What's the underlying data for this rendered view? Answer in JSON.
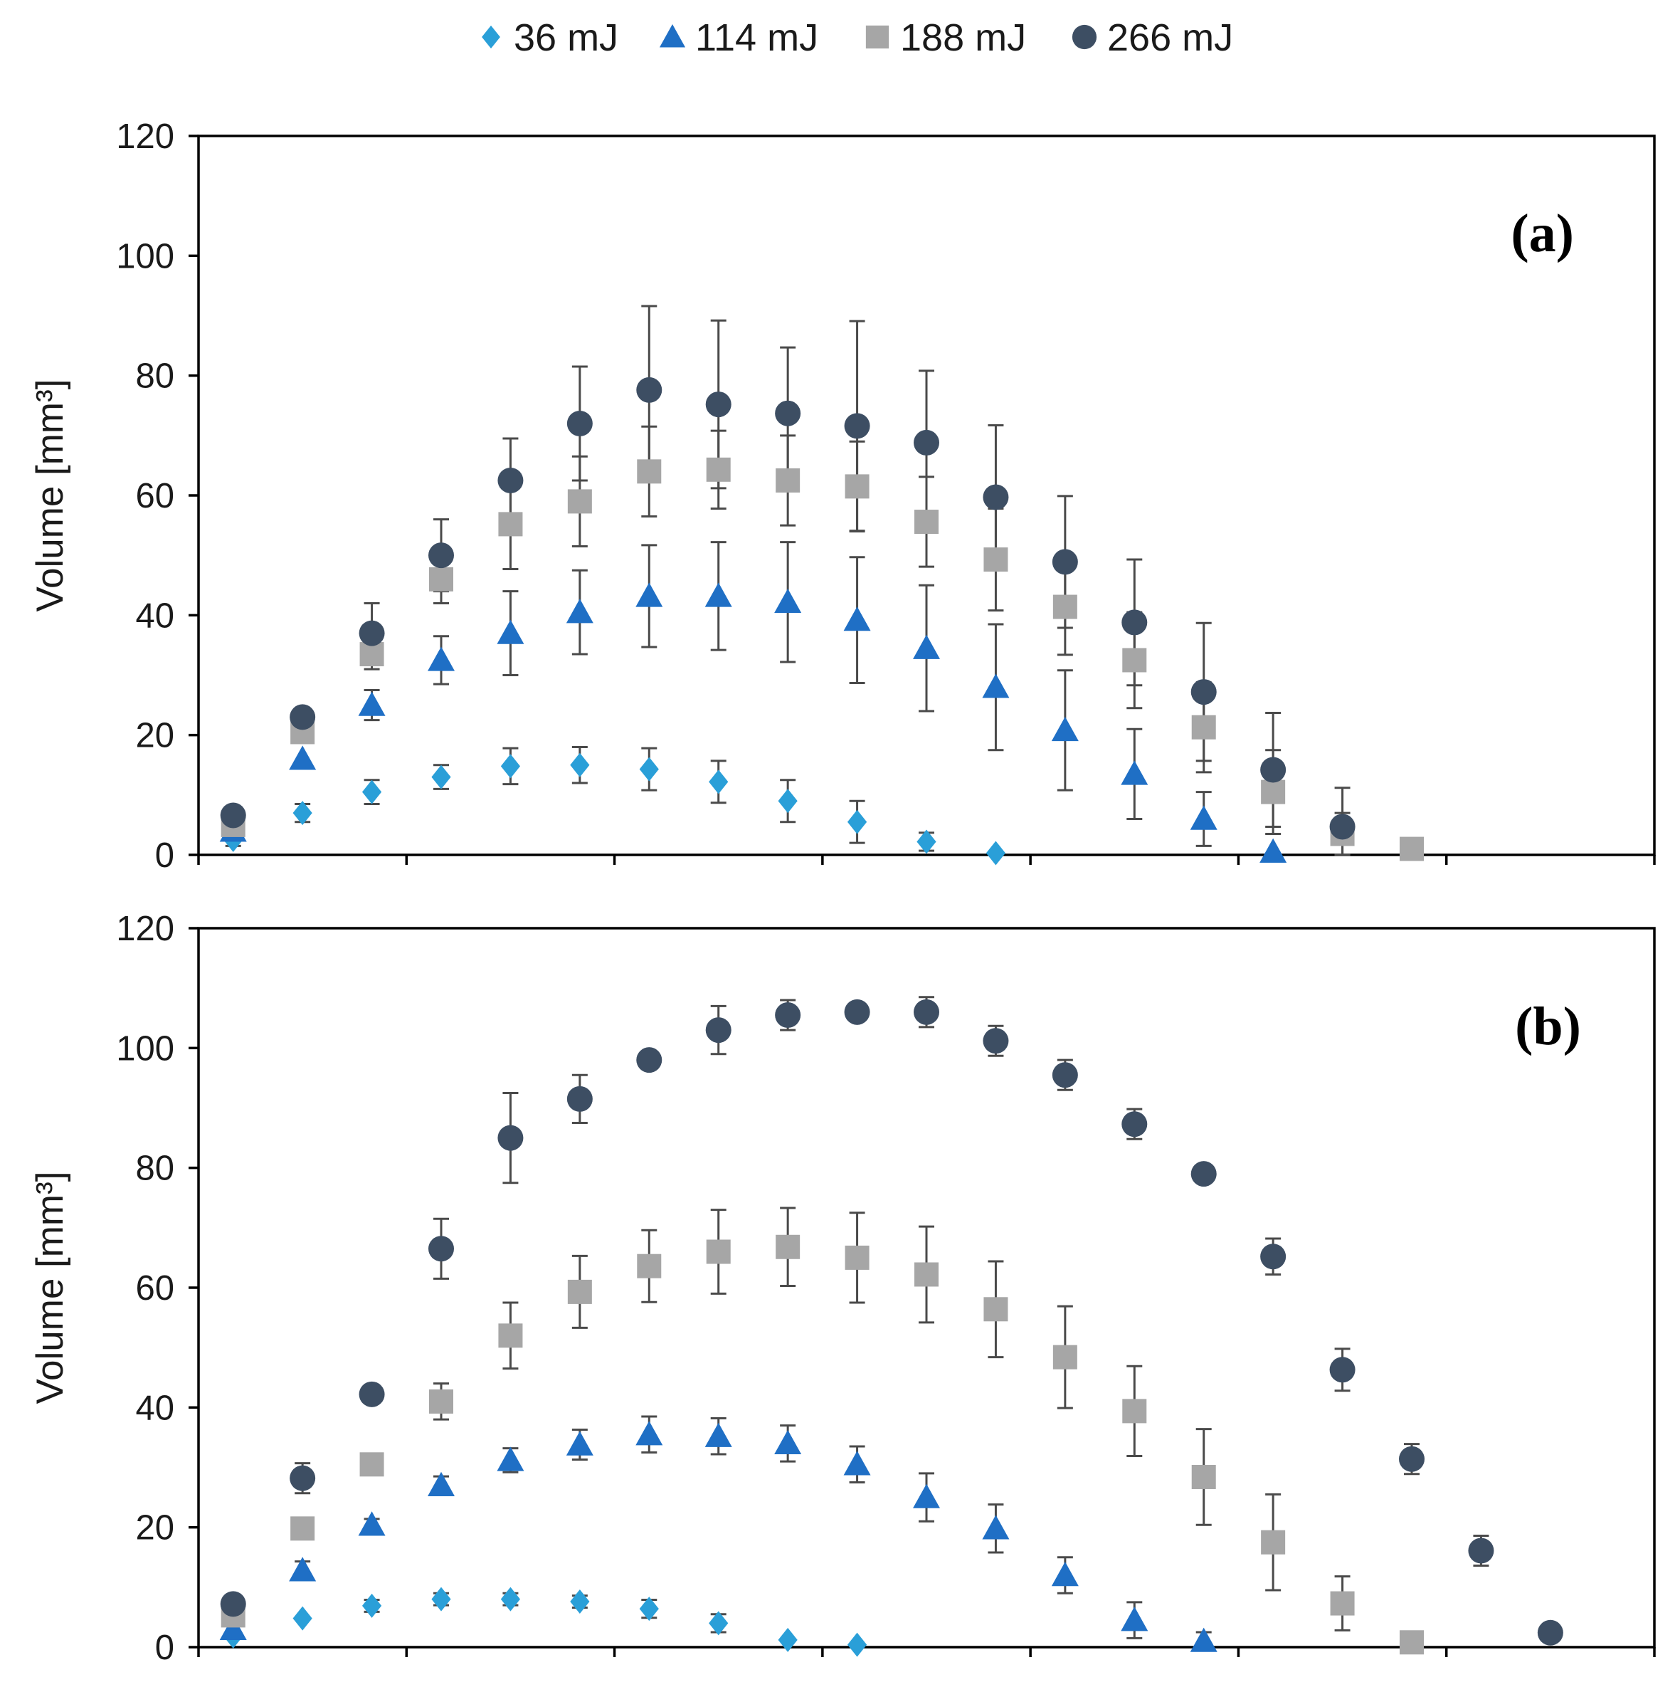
{
  "legend": [
    {
      "label": "36 mJ",
      "marker": "diamond-icon",
      "color": "#2a9fd8"
    },
    {
      "label": "114 mJ",
      "marker": "triangle-icon",
      "color": "#1f6fc5"
    },
    {
      "label": "188 mJ",
      "marker": "square-icon",
      "color": "#a6a6a6"
    },
    {
      "label": "266 mJ",
      "marker": "circle-icon",
      "color": "#3d4e63"
    }
  ],
  "error_bar_color": "#4a4a4a",
  "chart_data": [
    {
      "type": "scatter",
      "panel_label": "(a)",
      "title": "",
      "xlabel": "",
      "ylabel": "Volume [mm³]",
      "ylim": [
        0,
        120
      ],
      "yticks": [
        0,
        20,
        40,
        60,
        80,
        100,
        120
      ],
      "xlim": [
        0,
        21
      ],
      "grid": false,
      "series": [
        {
          "name": "36 mJ",
          "x": [
            0.5,
            1.5,
            2.5,
            3.5,
            4.5,
            5.5,
            6.5,
            7.5,
            8.5,
            9.5,
            10.5,
            11.5
          ],
          "y": [
            2.5,
            7,
            10.5,
            13,
            14.8,
            15,
            14.3,
            12.2,
            9,
            5.5,
            2.2,
            0.3
          ],
          "err": [
            1,
            1.5,
            2,
            2,
            3,
            3,
            3.5,
            3.5,
            3.5,
            3.5,
            1.5,
            0
          ]
        },
        {
          "name": "114 mJ",
          "x": [
            0.5,
            1.5,
            2.5,
            3.5,
            4.5,
            5.5,
            6.5,
            7.5,
            8.5,
            9.5,
            10.5,
            11.5,
            12.5,
            13.5,
            14.5,
            15.5
          ],
          "y": [
            4,
            16,
            25,
            32.5,
            37,
            40.5,
            43.2,
            43.2,
            42.2,
            39.2,
            34.5,
            28,
            20.8,
            13.5,
            6,
            0.5
          ],
          "err": [
            0,
            0,
            2.5,
            4,
            7,
            7,
            8.5,
            9,
            10,
            10.5,
            10.5,
            10.5,
            10,
            7.5,
            4.5,
            0
          ]
        },
        {
          "name": "188 mJ",
          "x": [
            0.5,
            1.5,
            2.5,
            3.5,
            4.5,
            5.5,
            6.5,
            7.5,
            8.5,
            9.5,
            10.5,
            11.5,
            12.5,
            13.5,
            14.5,
            15.5,
            16.5,
            17.5
          ],
          "y": [
            5,
            20.5,
            33.5,
            46,
            55.2,
            59,
            64,
            64.3,
            62.5,
            61.5,
            55.6,
            49.3,
            41.4,
            32.5,
            21.3,
            10.5,
            3.5,
            1
          ],
          "err": [
            0,
            0,
            2.5,
            4,
            7.5,
            7.5,
            7.5,
            6.5,
            7.5,
            7.5,
            7.5,
            8.5,
            8,
            8,
            7.5,
            7,
            3.5,
            0
          ]
        },
        {
          "name": "266 mJ",
          "x": [
            0.5,
            1.5,
            2.5,
            3.5,
            4.5,
            5.5,
            6.5,
            7.5,
            8.5,
            9.5,
            10.5,
            11.5,
            12.5,
            13.5,
            14.5,
            15.5,
            16.5
          ],
          "y": [
            6.6,
            23,
            37,
            50,
            62.5,
            72,
            77.6,
            75.2,
            73.7,
            71.6,
            68.8,
            59.7,
            48.9,
            38.8,
            27.2,
            14.2,
            4.7
          ],
          "err": [
            0,
            0,
            5,
            6,
            7,
            9.5,
            14,
            14,
            11,
            17.5,
            12,
            12,
            11,
            10.5,
            11.5,
            9.5,
            6.5
          ]
        }
      ]
    },
    {
      "type": "scatter",
      "panel_label": "(b)",
      "title": "",
      "xlabel": "",
      "ylabel": "Volume [mm³]",
      "ylim": [
        0,
        120
      ],
      "yticks": [
        0,
        20,
        40,
        60,
        80,
        100,
        120
      ],
      "xlim": [
        0,
        21
      ],
      "grid": false,
      "series": [
        {
          "name": "36 mJ",
          "x": [
            0.5,
            1.5,
            2.5,
            3.5,
            4.5,
            5.5,
            6.5,
            7.5,
            8.5,
            9.5
          ],
          "y": [
            1.8,
            4.8,
            6.9,
            8,
            8,
            7.6,
            6.4,
            4,
            1.2,
            0.4
          ],
          "err": [
            0,
            0,
            1,
            1,
            1,
            1,
            1.5,
            1.5,
            0,
            0
          ]
        },
        {
          "name": "114 mJ",
          "x": [
            0.5,
            1.5,
            2.5,
            3.5,
            4.5,
            5.5,
            6.5,
            7.5,
            8.5,
            9.5,
            10.5,
            11.5,
            12.5,
            13.5,
            14.5
          ],
          "y": [
            3,
            12.8,
            20.4,
            27,
            31.2,
            33.8,
            35.5,
            35.2,
            34,
            30.5,
            25,
            19.8,
            12,
            4.5,
            1
          ],
          "err": [
            0,
            1.5,
            1,
            1.5,
            2,
            2.5,
            3,
            3,
            3,
            3,
            4,
            4,
            3,
            3,
            1.5
          ]
        },
        {
          "name": "188 mJ",
          "x": [
            0.5,
            1.5,
            2.5,
            3.5,
            4.5,
            5.5,
            6.5,
            7.5,
            8.5,
            9.5,
            10.5,
            11.5,
            12.5,
            13.5,
            14.5,
            15.5,
            16.5,
            17.5
          ],
          "y": [
            5.3,
            19.8,
            30.5,
            41,
            52,
            59.3,
            63.6,
            66,
            66.8,
            65,
            62.2,
            56.4,
            48.4,
            39.4,
            28.4,
            17.5,
            7.3,
            0.8
          ],
          "err": [
            0,
            0,
            0,
            3,
            5.5,
            6,
            6,
            7,
            6.5,
            7.5,
            8,
            8,
            8.5,
            7.5,
            8,
            8,
            4.5,
            0
          ]
        },
        {
          "name": "266 mJ",
          "x": [
            0.5,
            1.5,
            2.5,
            3.5,
            4.5,
            5.5,
            6.5,
            7.5,
            8.5,
            9.5,
            10.5,
            11.5,
            12.5,
            13.5,
            14.5,
            15.5,
            16.5,
            17.5,
            18.5,
            19.5
          ],
          "y": [
            7.2,
            28.2,
            42.2,
            66.5,
            85,
            91.5,
            98,
            103,
            105.5,
            106,
            106,
            101.2,
            95.5,
            87.3,
            79,
            65.2,
            46.3,
            31.4,
            16.1,
            2.4
          ],
          "err": [
            0,
            2.5,
            0,
            5,
            7.5,
            4,
            0,
            4,
            2.5,
            1.5,
            2.5,
            2.5,
            2.5,
            2.5,
            0,
            3,
            3.5,
            2.5,
            2.5,
            0
          ]
        }
      ]
    }
  ]
}
